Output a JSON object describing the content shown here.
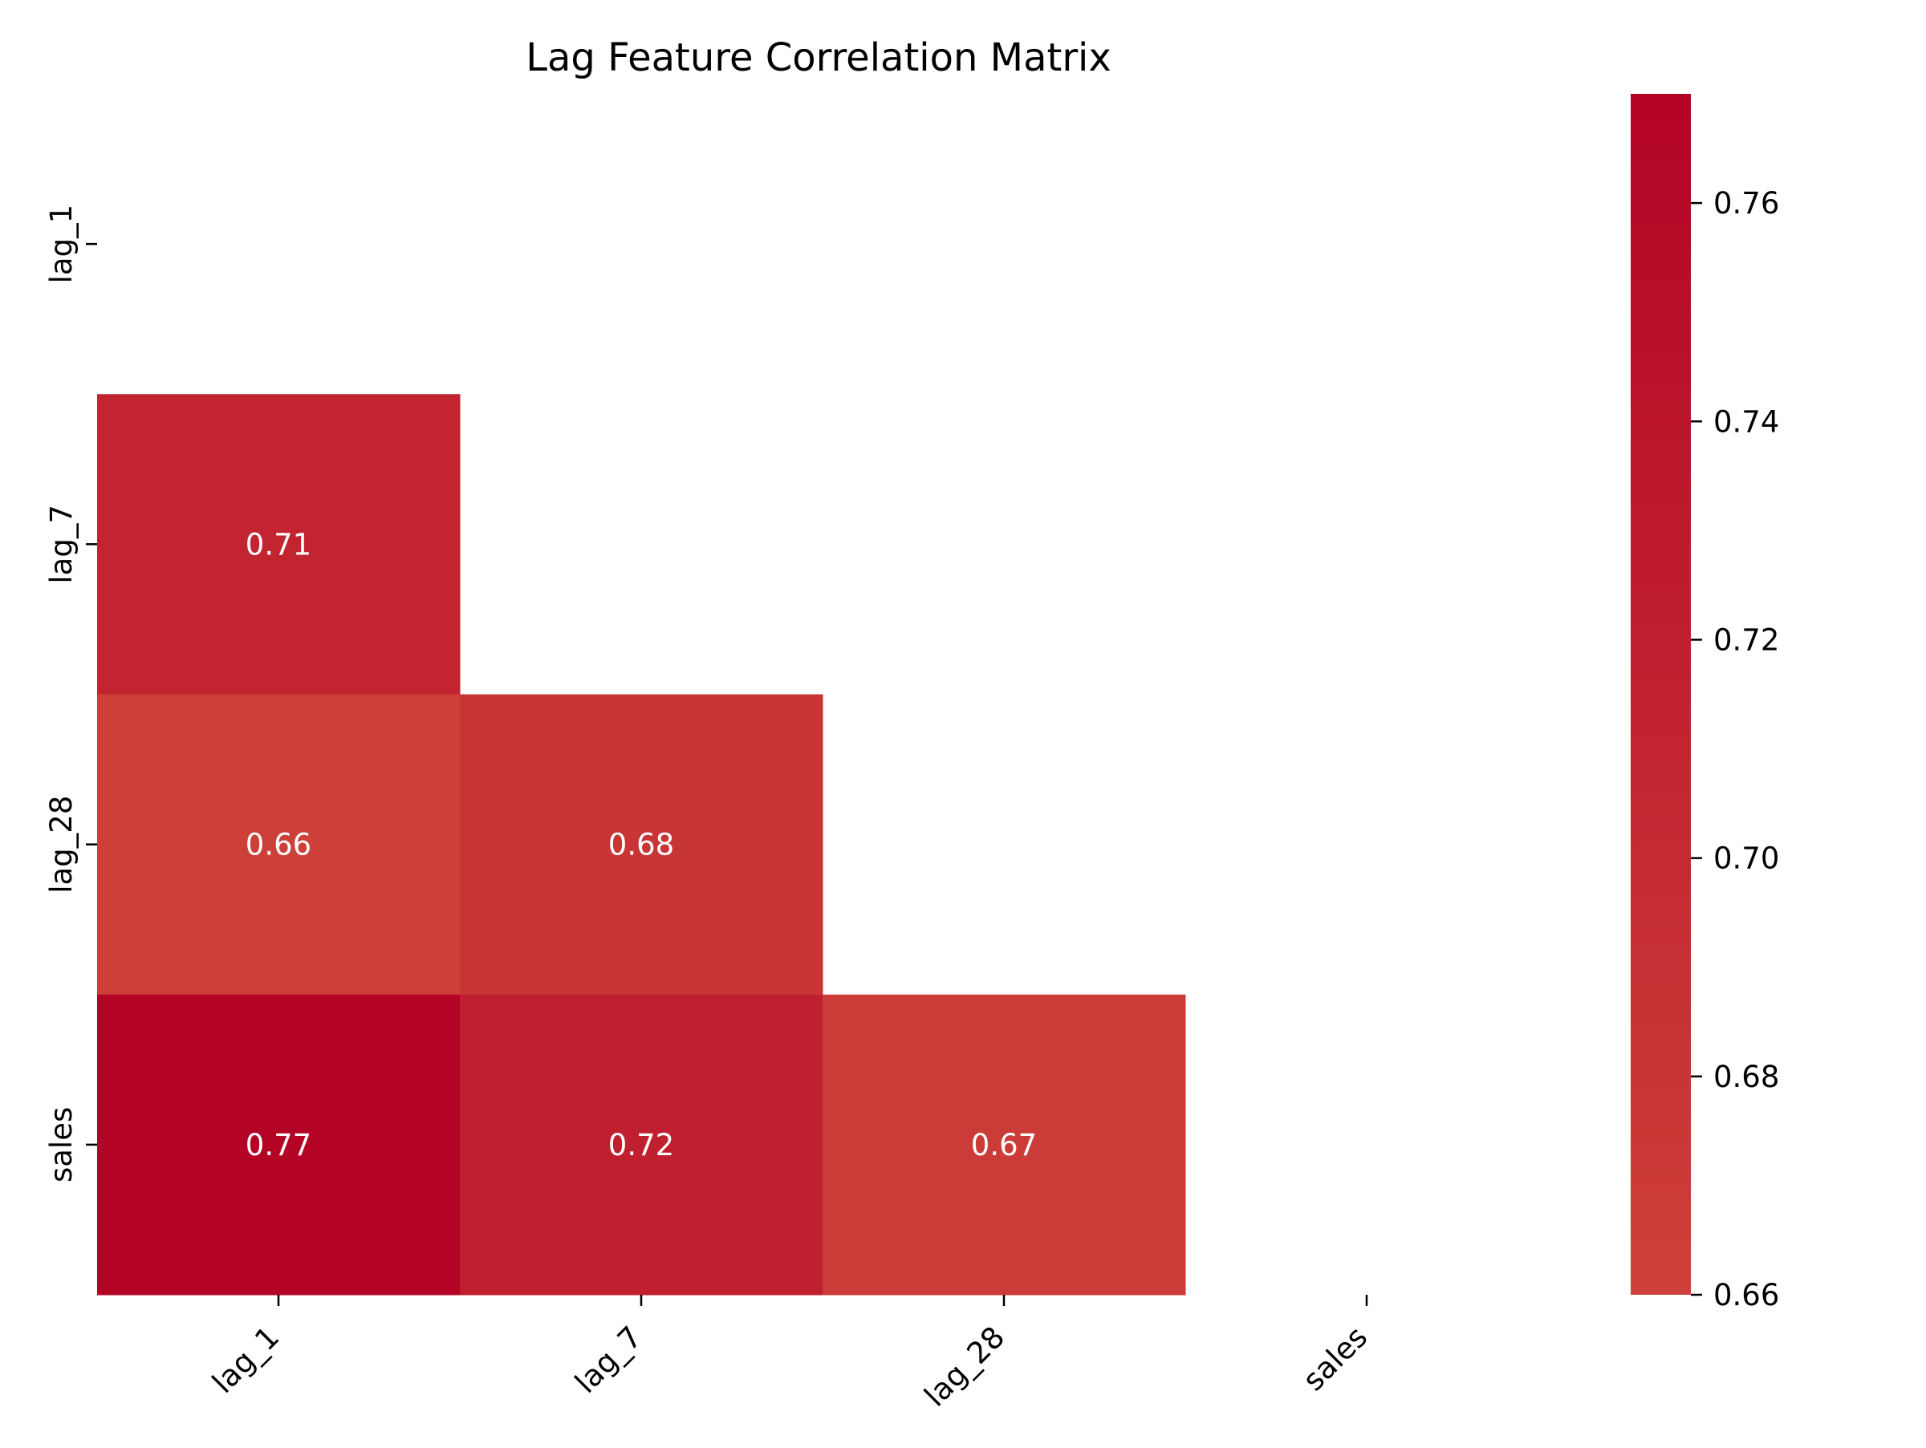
{
  "chart_data": {
    "type": "heatmap",
    "title": "Lag Feature Correlation Matrix",
    "xlabel": "",
    "ylabel": "",
    "x_categories": [
      "lag_1",
      "lag_7",
      "lag_28",
      "sales"
    ],
    "y_categories": [
      "lag_1",
      "lag_7",
      "lag_28",
      "sales"
    ],
    "mask": "upper triangle including diagonal",
    "cells": [
      {
        "row": "lag_7",
        "col": "lag_1",
        "value": 0.71,
        "label": "0.71"
      },
      {
        "row": "lag_28",
        "col": "lag_1",
        "value": 0.66,
        "label": "0.66"
      },
      {
        "row": "lag_28",
        "col": "lag_7",
        "value": 0.68,
        "label": "0.68"
      },
      {
        "row": "sales",
        "col": "lag_1",
        "value": 0.77,
        "label": "0.77"
      },
      {
        "row": "sales",
        "col": "lag_7",
        "value": 0.72,
        "label": "0.72"
      },
      {
        "row": "sales",
        "col": "lag_28",
        "value": 0.67,
        "label": "0.67"
      }
    ],
    "colorbar": {
      "range": [
        0.66,
        0.77
      ],
      "ticks": [
        "0.66",
        "0.68",
        "0.70",
        "0.72",
        "0.74",
        "0.76"
      ],
      "color_low": "#cd4039",
      "color_high": "#b40426"
    },
    "grid": false,
    "legend": "colorbar right"
  }
}
